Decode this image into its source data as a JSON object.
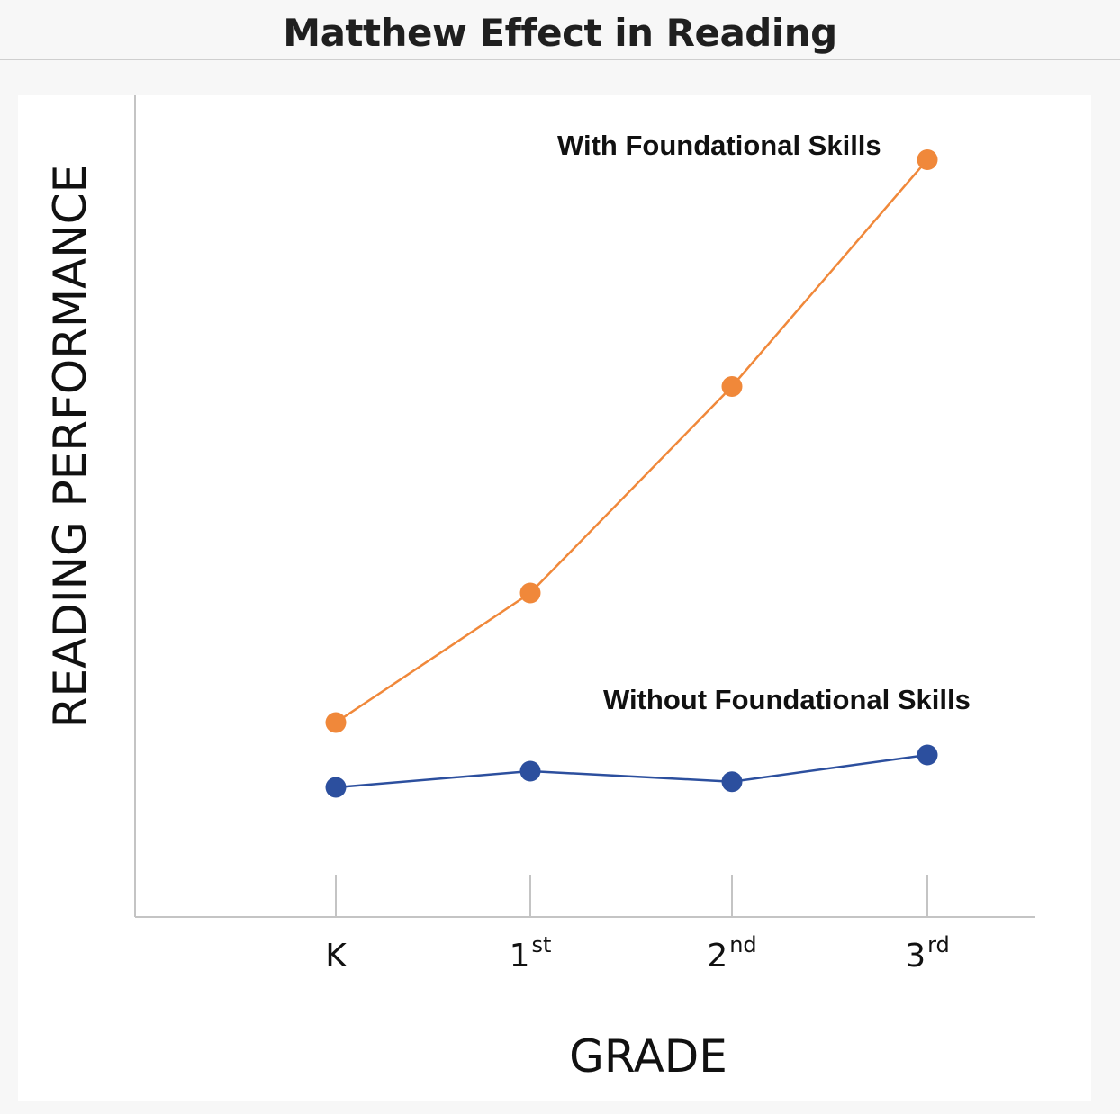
{
  "page": {
    "title": "Matthew Effect in Reading"
  },
  "chart_data": {
    "type": "line",
    "title": "Matthew Effect in Reading",
    "xlabel": "GRADE",
    "ylabel": "READING PERFORMANCE",
    "categories": [
      {
        "base": "K",
        "sup": ""
      },
      {
        "base": "1",
        "sup": "st"
      },
      {
        "base": "2",
        "sup": "nd"
      },
      {
        "base": "3",
        "sup": "rd"
      }
    ],
    "ylim": [
      0,
      100
    ],
    "grid": false,
    "legend": "inline labels",
    "series": [
      {
        "name": "With Foundational Skills",
        "color": "#f0883a",
        "values": [
          24,
          40,
          65.5,
          93.5
        ]
      },
      {
        "name": "Without Foundational Skills",
        "color": "#2c4f9e",
        "values": [
          16,
          18,
          16.7,
          20
        ]
      }
    ]
  }
}
